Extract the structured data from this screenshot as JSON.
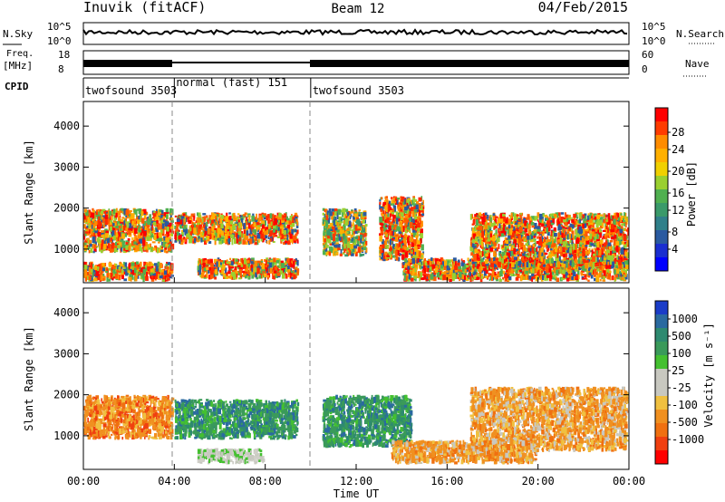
{
  "header": {
    "station": "Inuvik (fitACF)",
    "beam": "Beam 12",
    "date": "04/Feb/2015"
  },
  "params": {
    "nsky_label": "N.Sky",
    "nsky_ticks": [
      "10^5",
      "10^0"
    ],
    "nsearch_label": "N.Search",
    "nsearch_ticks": [
      "10^5",
      "10^0"
    ],
    "freq_label": "Freq.",
    "freq_unit": "[MHz]",
    "freq_ticks": [
      "18",
      "8"
    ],
    "nave_label": "Nave",
    "nave_ticks": [
      "60",
      "0"
    ],
    "cpid_label": "CPID",
    "cpid_segments": [
      {
        "label": "twofsound 3503",
        "start_hr": 0,
        "end_hr": 4
      },
      {
        "label": "normal (fast) 151",
        "start_hr": 4,
        "end_hr": 10
      },
      {
        "label": "twofsound 3503",
        "start_hr": 10,
        "end_hr": 24
      }
    ]
  },
  "power_panel": {
    "ylabel": "Slant Range [km]",
    "cbar_label": "Power [dB]",
    "cbar_ticks": [
      "28",
      "24",
      "20",
      "16",
      "12",
      "8",
      "4"
    ],
    "cbar_colors": [
      "#ff0000",
      "#ff3c00",
      "#ff8c00",
      "#ffb000",
      "#f0d000",
      "#9ad030",
      "#50b050",
      "#3a9a6a",
      "#30808a",
      "#2a5aa0",
      "#1a2ed0",
      "#0000ff"
    ]
  },
  "velocity_panel": {
    "ylabel": "Slant Range [km]",
    "cbar_label": "Velocity [m s⁻¹]",
    "cbar_ticks": [
      "1000",
      "500",
      "100",
      "25",
      "-25",
      "-100",
      "-500",
      "-1000"
    ],
    "cbar_colors": [
      "#1a3cc8",
      "#2a6aa0",
      "#2e8a70",
      "#3a9a5a",
      "#44c030",
      "#c8c8c0",
      "#c8c8c0",
      "#f0c040",
      "#f09020",
      "#f07010",
      "#f04010",
      "#ff0000"
    ]
  },
  "x_ticks": [
    "00:00",
    "04:00",
    "08:00",
    "12:00",
    "16:00",
    "20:00",
    "00:00"
  ],
  "xlabel": "Time UT",
  "chart_data": {
    "type": "heatmap",
    "x_unit": "hours UT",
    "xlim": [
      0,
      24
    ],
    "ylim": [
      180,
      4600
    ],
    "y_ticks": [
      1000,
      2000,
      3000,
      4000
    ],
    "power_scattering": [
      {
        "t0": 0,
        "t1": 4,
        "r0": 900,
        "r1": 2000,
        "level": "high"
      },
      {
        "t0": 0,
        "t1": 4,
        "r0": 200,
        "r1": 700,
        "level": "high"
      },
      {
        "t0": 4,
        "t1": 9.5,
        "r0": 1100,
        "r1": 1900,
        "level": "high"
      },
      {
        "t0": 5,
        "t1": 9.5,
        "r0": 250,
        "r1": 800,
        "level": "high"
      },
      {
        "t0": 10.5,
        "t1": 12.5,
        "r0": 800,
        "r1": 2000,
        "level": "mixed"
      },
      {
        "t0": 13,
        "t1": 15,
        "r0": 700,
        "r1": 2300,
        "level": "high"
      },
      {
        "t0": 14,
        "t1": 24,
        "r0": 200,
        "r1": 800,
        "level": "high"
      },
      {
        "t0": 17,
        "t1": 24,
        "r0": 500,
        "r1": 1900,
        "level": "high"
      }
    ],
    "velocity_scattering": [
      {
        "t0": 0,
        "t1": 4,
        "r0": 900,
        "r1": 2000,
        "level": "-500"
      },
      {
        "t0": 4,
        "t1": 9.5,
        "r0": 900,
        "r1": 1900,
        "level": "100"
      },
      {
        "t0": 5,
        "t1": 8,
        "r0": 300,
        "r1": 700,
        "level": "25"
      },
      {
        "t0": 10.5,
        "t1": 14.5,
        "r0": 700,
        "r1": 2000,
        "level": "100"
      },
      {
        "t0": 13.5,
        "t1": 20,
        "r0": 300,
        "r1": 900,
        "level": "-100"
      },
      {
        "t0": 17,
        "t1": 24,
        "r0": 600,
        "r1": 2200,
        "level": "-100"
      }
    ]
  }
}
